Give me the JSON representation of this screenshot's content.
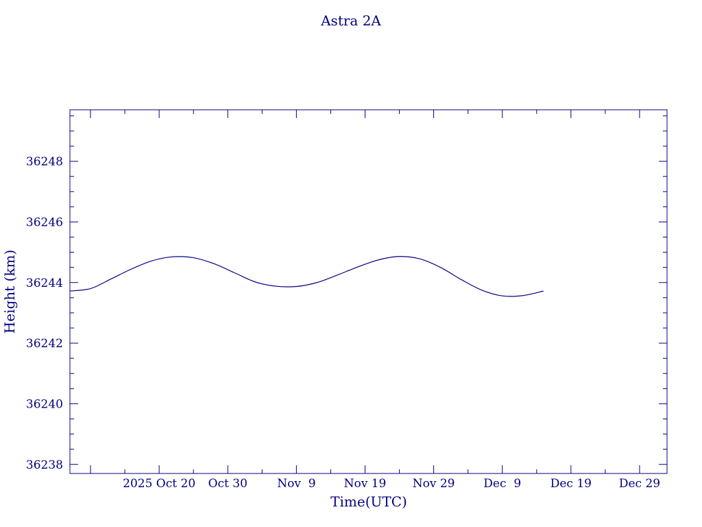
{
  "chart_data": {
    "type": "line",
    "title": "Astra 2A",
    "xlabel": "Time(UTC)",
    "ylabel": "Height (km)",
    "color": "#000080",
    "grid": false,
    "xlim": [
      "2025-10-07",
      "2026-01-02"
    ],
    "ylim": [
      36237.7,
      36249.7
    ],
    "y_ticks": [
      36238,
      36240,
      36242,
      36244,
      36246,
      36248
    ],
    "x_ticks": [
      {
        "date": "2025-10-20",
        "label": "2025 Oct 20"
      },
      {
        "date": "2025-10-30",
        "label": "Oct 30"
      },
      {
        "date": "2025-11-09",
        "label": "Nov  9"
      },
      {
        "date": "2025-11-19",
        "label": "Nov 19"
      },
      {
        "date": "2025-11-29",
        "label": "Nov 29"
      },
      {
        "date": "2025-12-09",
        "label": "Dec  9"
      },
      {
        "date": "2025-12-19",
        "label": "Dec 19"
      },
      {
        "date": "2025-12-29",
        "label": "Dec 29"
      }
    ],
    "series": [
      {
        "x": [
          "2025-10-07",
          "2025-10-10",
          "2025-10-13",
          "2025-10-16",
          "2025-10-19",
          "2025-10-22",
          "2025-10-25",
          "2025-10-28",
          "2025-10-31",
          "2025-11-03",
          "2025-11-06",
          "2025-11-09",
          "2025-11-12",
          "2025-11-15",
          "2025-11-18",
          "2025-11-21",
          "2025-11-24",
          "2025-11-27",
          "2025-11-30",
          "2025-12-03",
          "2025-12-06",
          "2025-12-09",
          "2025-12-12",
          "2025-12-15"
        ],
        "y": [
          36243.72,
          36243.8,
          36244.12,
          36244.45,
          36244.72,
          36244.85,
          36244.82,
          36244.62,
          36244.32,
          36244.02,
          36243.88,
          36243.87,
          36244.0,
          36244.25,
          36244.52,
          36244.75,
          36244.86,
          36244.78,
          36244.5,
          36244.1,
          36243.75,
          36243.56,
          36243.57,
          36243.72
        ]
      }
    ]
  }
}
